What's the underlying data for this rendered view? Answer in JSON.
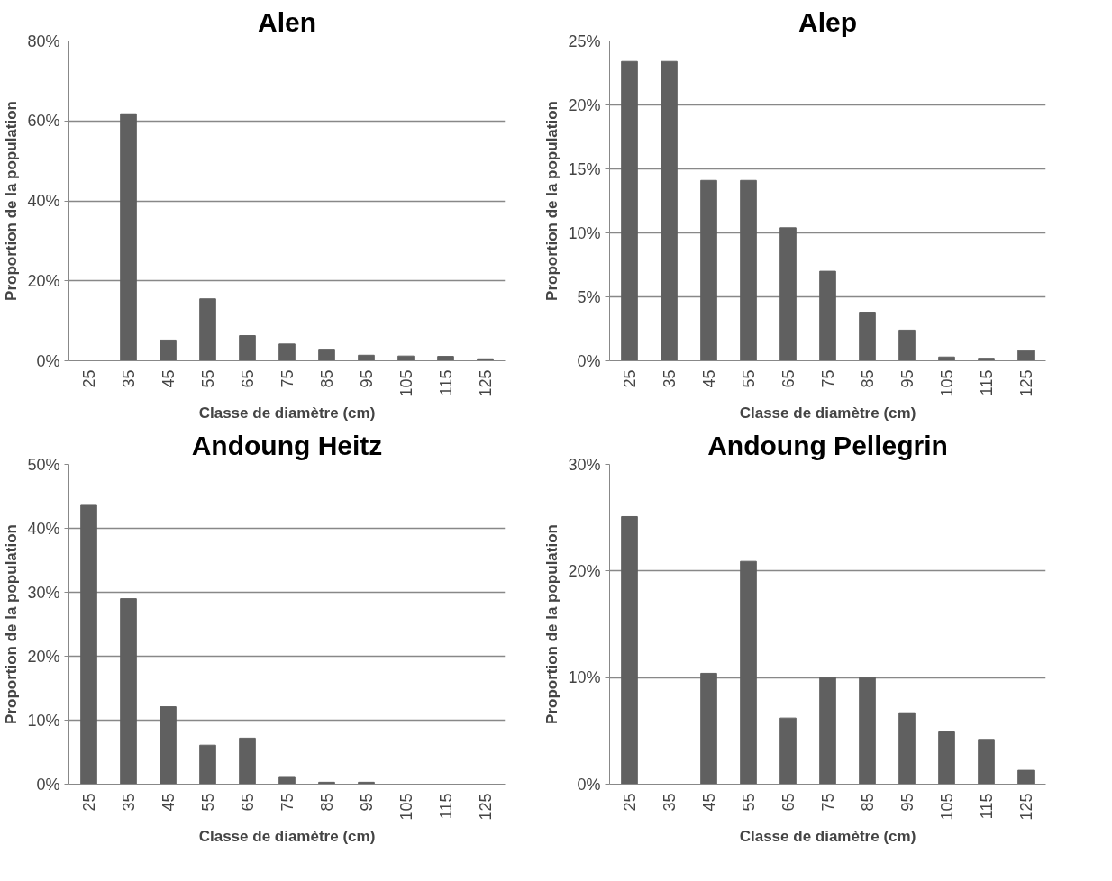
{
  "chart_data": [
    {
      "type": "bar",
      "title": "Alen",
      "xlabel": "Classe de diamètre (cm)",
      "ylabel": "Proportion de la population",
      "categories": [
        "25",
        "35",
        "45",
        "55",
        "65",
        "75",
        "85",
        "95",
        "105",
        "115",
        "125"
      ],
      "values": [
        0,
        61.8,
        5.2,
        15.5,
        6.3,
        4.2,
        2.9,
        1.4,
        1.2,
        1.1,
        0.5
      ],
      "color": "#606060",
      "ylim": [
        0,
        80
      ],
      "yticks": [
        {
          "value": 0,
          "label": "0%"
        },
        {
          "value": 20,
          "label": "20%"
        },
        {
          "value": 40,
          "label": "40%"
        },
        {
          "value": 60,
          "label": "60%"
        },
        {
          "value": 80,
          "label": "80%"
        }
      ],
      "grid": "y",
      "legend": false
    },
    {
      "type": "bar",
      "title": "Alep",
      "xlabel": "Classe de diamètre (cm)",
      "ylabel": "Proportion de la population",
      "categories": [
        "25",
        "35",
        "45",
        "55",
        "65",
        "75",
        "85",
        "95",
        "105",
        "115",
        "125"
      ],
      "values": [
        23.4,
        23.4,
        14.1,
        14.1,
        10.4,
        7.0,
        3.8,
        2.4,
        0.3,
        0.2,
        0.8
      ],
      "color": "#606060",
      "ylim": [
        0,
        25
      ],
      "yticks": [
        {
          "value": 0,
          "label": "0%"
        },
        {
          "value": 5,
          "label": "5%"
        },
        {
          "value": 10,
          "label": "10%"
        },
        {
          "value": 15,
          "label": "15%"
        },
        {
          "value": 20,
          "label": "20%"
        },
        {
          "value": 25,
          "label": "25%"
        }
      ],
      "grid": "y",
      "legend": false
    },
    {
      "type": "bar",
      "title": "Andoung Heitz",
      "xlabel": "Classe de diamètre (cm)",
      "ylabel": "Proportion de la population",
      "categories": [
        "25",
        "35",
        "45",
        "55",
        "65",
        "75",
        "85",
        "95",
        "105",
        "115",
        "125"
      ],
      "values": [
        43.6,
        29.0,
        12.1,
        6.1,
        7.2,
        1.2,
        0.3,
        0.3,
        0,
        0,
        0
      ],
      "color": "#606060",
      "ylim": [
        0,
        50
      ],
      "yticks": [
        {
          "value": 0,
          "label": "0%"
        },
        {
          "value": 10,
          "label": "10%"
        },
        {
          "value": 20,
          "label": "20%"
        },
        {
          "value": 30,
          "label": "30%"
        },
        {
          "value": 40,
          "label": "40%"
        },
        {
          "value": 50,
          "label": "50%"
        }
      ],
      "grid": "y",
      "legend": false
    },
    {
      "type": "bar",
      "title": "Andoung Pellegrin",
      "xlabel": "Classe de diamètre (cm)",
      "ylabel": "Proportion de la population",
      "categories": [
        "25",
        "35",
        "45",
        "55",
        "65",
        "75",
        "85",
        "95",
        "105",
        "115",
        "125"
      ],
      "values": [
        25.1,
        0,
        10.4,
        20.9,
        6.2,
        10.0,
        10.0,
        6.7,
        4.9,
        4.2,
        1.3
      ],
      "color": "#606060",
      "ylim": [
        0,
        30
      ],
      "yticks": [
        {
          "value": 0,
          "label": "0%"
        },
        {
          "value": 10,
          "label": "10%"
        },
        {
          "value": 20,
          "label": "20%"
        },
        {
          "value": 30,
          "label": "30%"
        }
      ],
      "grid": "y",
      "legend": false
    }
  ]
}
